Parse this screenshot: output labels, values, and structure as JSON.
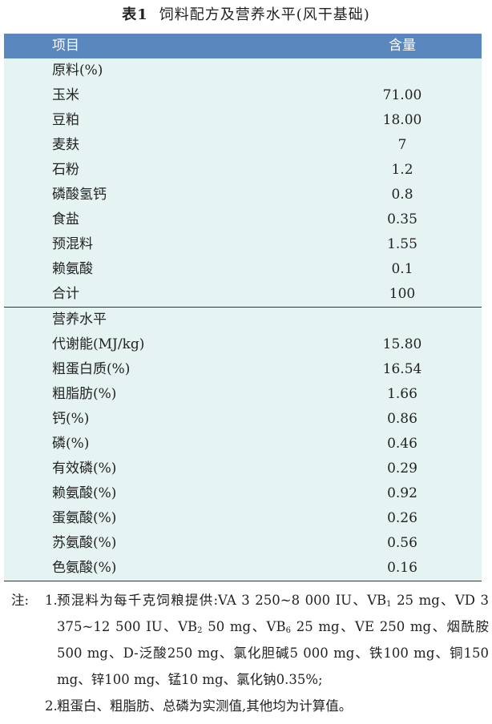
{
  "title_label": "表1",
  "title": "饲料配方及营养水平(风干基础)",
  "table": {
    "header": [
      "项目",
      "含量"
    ],
    "sections": [
      {
        "title": "原料(%)",
        "rows": [
          [
            "玉米",
            "71.00"
          ],
          [
            "豆粕",
            "18.00"
          ],
          [
            "麦麸",
            "7"
          ],
          [
            "石粉",
            "1.2"
          ],
          [
            "磷酸氢钙",
            "0.8"
          ],
          [
            "食盐",
            "0.35"
          ],
          [
            "预混料",
            "1.55"
          ],
          [
            "赖氨酸",
            "0.1"
          ],
          [
            "合计",
            "100"
          ]
        ]
      },
      {
        "title": "营养水平",
        "rows": [
          [
            "代谢能(MJ/kg)",
            "15.80"
          ],
          [
            "粗蛋白质(%)",
            "16.54"
          ],
          [
            "粗脂肪(%)",
            "1.66"
          ],
          [
            "钙(%)",
            "0.86"
          ],
          [
            "磷(%)",
            "0.46"
          ],
          [
            "有效磷(%)",
            "0.29"
          ],
          [
            "赖氨酸(%)",
            "0.92"
          ],
          [
            "蛋氨酸(%)",
            "0.26"
          ],
          [
            "苏氨酸(%)",
            "0.56"
          ],
          [
            "色氨酸(%)",
            "0.16"
          ]
        ]
      }
    ]
  },
  "notes": {
    "label": "注:",
    "items": [
      {
        "number": "1.",
        "segments": [
          "预混料为每千克饲粮提供:VA 3 250~8 000 IU、VB",
          "1",
          " 25 mg、VD 3 375~12 500 IU、VB",
          "2",
          " 50 mg、VB",
          "6",
          " 25 mg、VE 250 mg、烟酰胺500 mg、D-泛酸250 mg、氯化胆碱5 000 mg、铁100 mg、铜150 mg、锌100 mg、锰10 mg、氯化钠0.35%;"
        ]
      },
      {
        "number": "2.",
        "segments": [
          "粗蛋白、粗脂肪、总磷为实测值,其他均为计算值。"
        ]
      }
    ]
  }
}
